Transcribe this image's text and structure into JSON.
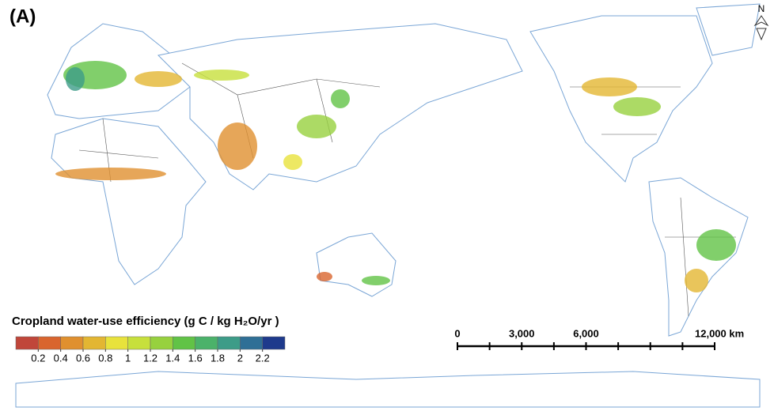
{
  "panel_label": "(A)",
  "compass": "N",
  "legend": {
    "title": "Cropland water-use efficiency (g C / kg H₂O/yr )",
    "colors": [
      "#c0463a",
      "#d9652e",
      "#e0902f",
      "#e3b632",
      "#e8e23c",
      "#c7e03c",
      "#97d13e",
      "#61c346",
      "#4bb26a",
      "#3d9c88",
      "#2f6f96",
      "#1e3a8c"
    ],
    "range": [
      0,
      2.4
    ],
    "ticks": [
      0.2,
      0.4,
      0.6,
      0.8,
      1,
      1.2,
      1.4,
      1.6,
      1.8,
      2,
      2.2
    ]
  },
  "scale_bar": {
    "range": [
      0,
      12000
    ],
    "ticks": [
      {
        "value": 0,
        "label": "0"
      },
      {
        "value": 1500,
        "label": null
      },
      {
        "value": 3000,
        "label": "3,000"
      },
      {
        "value": 4500,
        "label": null
      },
      {
        "value": 6000,
        "label": "6,000"
      },
      {
        "value": 7500,
        "label": null
      },
      {
        "value": 9000,
        "label": null
      },
      {
        "value": 10500,
        "label": null
      },
      {
        "value": 12000,
        "label": "12,000 km"
      }
    ]
  }
}
